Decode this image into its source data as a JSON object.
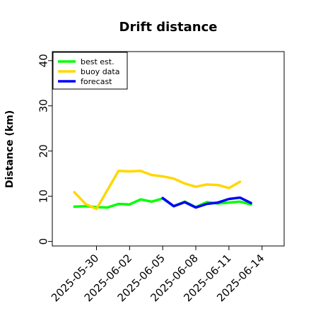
{
  "chart_data": {
    "type": "line",
    "title": "Drift distance",
    "ylabel": "Distance (km)",
    "xlabel": "",
    "ylim": [
      -1,
      42
    ],
    "yticks": [
      0,
      10,
      20,
      30,
      40
    ],
    "xlim": [
      "2025-05-26",
      "2025-06-16"
    ],
    "xticks": [
      {
        "label": "2025-05-30",
        "date": "2025-05-30",
        "color": "#000000"
      },
      {
        "label": "2025-06-02",
        "date": "2025-06-02",
        "color": "#000000"
      },
      {
        "label": "2025-06-05",
        "date": "2025-06-05",
        "color": "#228B22"
      },
      {
        "label": "2025-06-08",
        "date": "2025-06-08",
        "color": "#000000"
      },
      {
        "label": "2025-06-11",
        "date": "2025-06-11",
        "color": "#000000"
      },
      {
        "label": "2025-06-14",
        "date": "2025-06-14",
        "color": "#000000"
      }
    ],
    "grid": false,
    "legend_position": "top-left",
    "series": [
      {
        "name": "best est.",
        "color": "#00ff00",
        "points": [
          [
            "2025-05-28",
            7.7
          ],
          [
            "2025-05-29",
            7.8
          ],
          [
            "2025-05-30",
            7.6
          ],
          [
            "2025-05-31",
            7.5
          ],
          [
            "2025-06-01",
            8.3
          ],
          [
            "2025-06-02",
            8.2
          ],
          [
            "2025-06-03",
            9.3
          ],
          [
            "2025-06-04",
            8.8
          ],
          [
            "2025-06-05",
            9.5
          ],
          [
            "2025-06-06",
            7.8
          ],
          [
            "2025-06-07",
            8.8
          ],
          [
            "2025-06-08",
            7.6
          ],
          [
            "2025-06-09",
            8.7
          ],
          [
            "2025-06-10",
            8.4
          ],
          [
            "2025-06-11",
            8.6
          ],
          [
            "2025-06-12",
            8.8
          ],
          [
            "2025-06-13",
            8.2
          ]
        ]
      },
      {
        "name": "buoy data",
        "color": "#ffd700",
        "points": [
          [
            "2025-05-28",
            10.9
          ],
          [
            "2025-05-29",
            8.3
          ],
          [
            "2025-05-30",
            7.2
          ],
          [
            "2025-05-31",
            11.4
          ],
          [
            "2025-06-01",
            15.6
          ],
          [
            "2025-06-02",
            15.5
          ],
          [
            "2025-06-03",
            15.6
          ],
          [
            "2025-06-04",
            14.7
          ],
          [
            "2025-06-05",
            14.4
          ],
          [
            "2025-06-06",
            13.9
          ],
          [
            "2025-06-07",
            12.8
          ],
          [
            "2025-06-08",
            12.1
          ],
          [
            "2025-06-09",
            12.6
          ],
          [
            "2025-06-10",
            12.5
          ],
          [
            "2025-06-11",
            11.8
          ],
          [
            "2025-06-12",
            13.2
          ]
        ]
      },
      {
        "name": "forecast",
        "color": "#0000ff",
        "points": [
          [
            "2025-06-05",
            9.6
          ],
          [
            "2025-06-06",
            7.8
          ],
          [
            "2025-06-07",
            8.7
          ],
          [
            "2025-06-08",
            7.5
          ],
          [
            "2025-06-09",
            8.3
          ],
          [
            "2025-06-10",
            8.6
          ],
          [
            "2025-06-11",
            9.4
          ],
          [
            "2025-06-12",
            9.7
          ],
          [
            "2025-06-13",
            8.5
          ]
        ]
      }
    ]
  }
}
